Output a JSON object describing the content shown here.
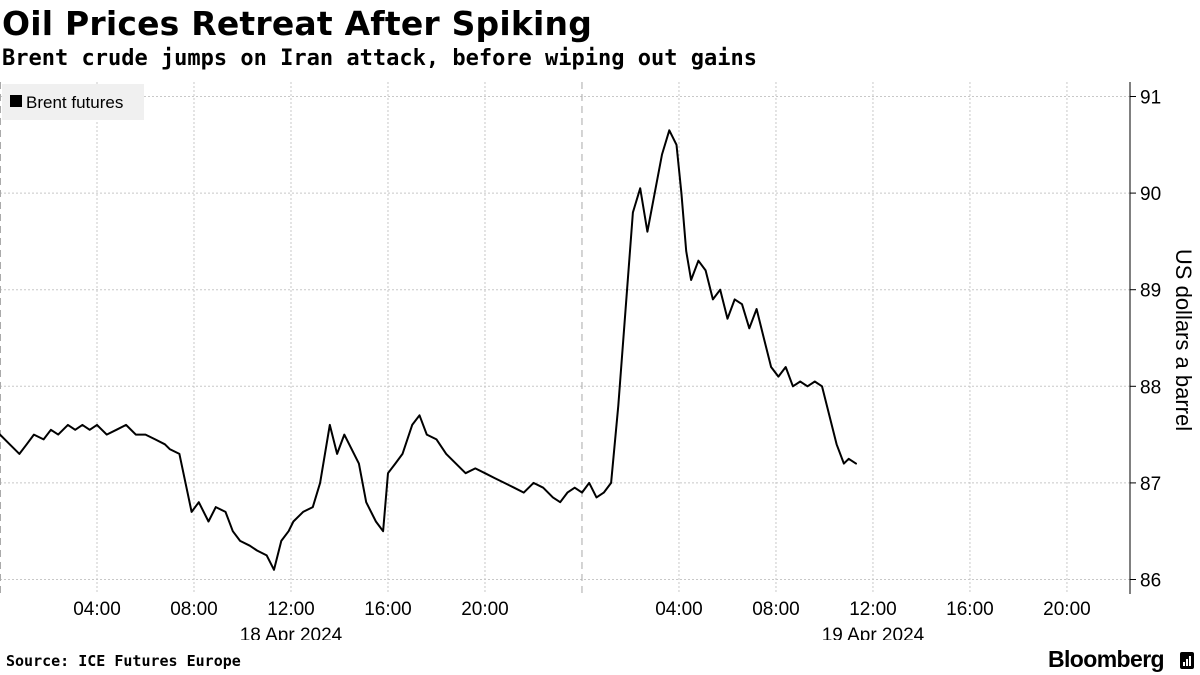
{
  "header": {
    "title": "Oil Prices Retreat After Spiking",
    "subtitle": "Brent crude jumps on Iran attack, before wiping out gains"
  },
  "footer": {
    "source": "Source: ICE Futures Europe",
    "brand": "Bloomberg",
    "brand_icon": "bloomberg-chart-icon"
  },
  "colors": {
    "line": "#000000",
    "grid": "#c8c8c8",
    "legend_bg": "#f0f0f0"
  },
  "chart_data": {
    "type": "line",
    "title": "Oil Prices Retreat After Spiking",
    "subtitle": "Brent crude jumps on Iran attack, before wiping out gains",
    "ylabel": "US dollars a barrel",
    "ylim": [
      85.85,
      91.15
    ],
    "y_ticks": [
      86,
      87,
      88,
      89,
      90,
      91
    ],
    "xlim": [
      0,
      46.6
    ],
    "x_tick_labels": [
      "04:00",
      "08:00",
      "12:00",
      "16:00",
      "20:00",
      "04:00",
      "08:00",
      "12:00",
      "16:00",
      "20:00"
    ],
    "x_tick_hours": [
      4,
      8,
      12,
      16,
      20,
      28,
      32,
      36,
      40,
      44
    ],
    "date_labels": [
      {
        "label": "18 Apr 2024",
        "hour": 12
      },
      {
        "label": "19 Apr 2024",
        "hour": 36
      }
    ],
    "day_boundaries": [
      0,
      24
    ],
    "grid": true,
    "legend_position": "top-left",
    "series": [
      {
        "name": "Brent futures",
        "x": [
          0,
          0.4,
          0.8,
          1.1,
          1.4,
          1.8,
          2.1,
          2.4,
          2.8,
          3.1,
          3.4,
          3.7,
          4.0,
          4.4,
          4.8,
          5.2,
          5.6,
          6.0,
          6.4,
          6.8,
          7.0,
          7.4,
          7.9,
          8.2,
          8.6,
          8.9,
          9.3,
          9.6,
          9.9,
          10.3,
          10.6,
          11.0,
          11.3,
          11.6,
          11.9,
          12.1,
          12.5,
          12.9,
          13.2,
          13.6,
          13.9,
          14.2,
          14.5,
          14.8,
          15.1,
          15.5,
          15.8,
          16.0,
          16.3,
          16.6,
          17.0,
          17.3,
          17.6,
          18.0,
          18.4,
          18.8,
          19.2,
          19.6,
          20.0,
          20.4,
          20.8,
          21.2,
          21.6,
          22.0,
          22.4,
          22.8,
          23.1,
          23.4,
          23.7,
          24.0,
          24.3,
          24.6,
          24.9,
          25.2,
          25.5,
          25.8,
          26.1,
          26.4,
          26.7,
          27.0,
          27.3,
          27.6,
          27.9,
          28.1,
          28.3,
          28.5,
          28.8,
          29.1,
          29.4,
          29.7,
          30.0,
          30.3,
          30.6,
          30.9,
          31.2,
          31.5,
          31.8,
          32.1,
          32.4,
          32.7,
          33.0,
          33.3,
          33.6,
          33.9,
          34.2,
          34.5,
          34.8,
          35.0,
          35.3
        ],
        "values": [
          87.5,
          87.4,
          87.3,
          87.4,
          87.5,
          87.45,
          87.55,
          87.5,
          87.6,
          87.55,
          87.6,
          87.55,
          87.6,
          87.5,
          87.55,
          87.6,
          87.5,
          87.5,
          87.45,
          87.4,
          87.35,
          87.3,
          86.7,
          86.8,
          86.6,
          86.75,
          86.7,
          86.5,
          86.4,
          86.35,
          86.3,
          86.25,
          86.1,
          86.4,
          86.5,
          86.6,
          86.7,
          86.75,
          87.0,
          87.6,
          87.3,
          87.5,
          87.35,
          87.2,
          86.8,
          86.6,
          86.5,
          87.1,
          87.2,
          87.3,
          87.6,
          87.7,
          87.5,
          87.45,
          87.3,
          87.2,
          87.1,
          87.15,
          87.1,
          87.05,
          87.0,
          86.95,
          86.9,
          87.0,
          86.95,
          86.85,
          86.8,
          86.9,
          86.95,
          86.9,
          87.0,
          86.85,
          86.9,
          87.0,
          87.8,
          88.8,
          89.8,
          90.05,
          89.6,
          90.0,
          90.4,
          90.65,
          90.5,
          90.0,
          89.4,
          89.1,
          89.3,
          89.2,
          88.9,
          89.0,
          88.7,
          88.9,
          88.85,
          88.6,
          88.8,
          88.5,
          88.2,
          88.1,
          88.2,
          88.0,
          88.05,
          88.0,
          88.05,
          88.0,
          87.7,
          87.4,
          87.2,
          87.25,
          87.2
        ]
      }
    ]
  }
}
